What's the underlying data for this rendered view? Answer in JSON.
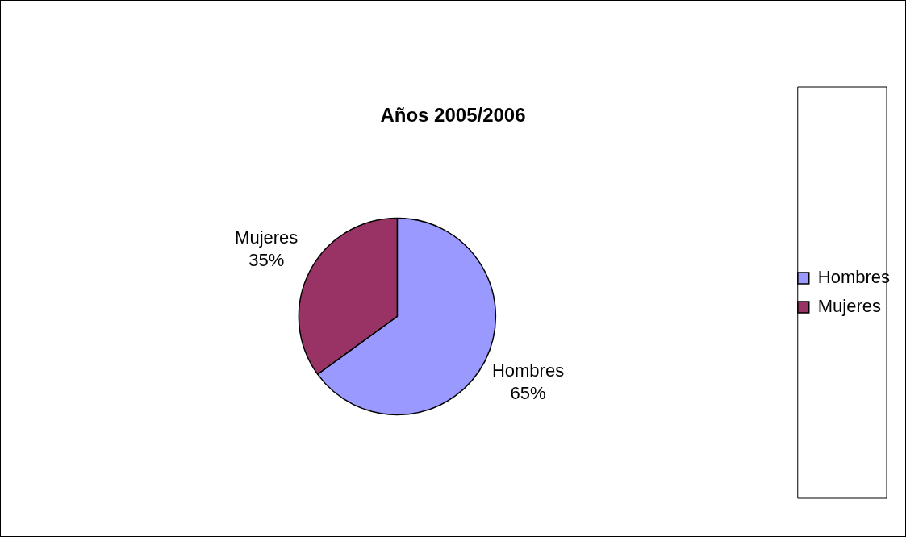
{
  "chart_data": {
    "type": "pie",
    "title": "Años 2005/2006",
    "categories": [
      "Hombres",
      "Mujeres"
    ],
    "values": [
      65,
      35
    ],
    "value_labels": [
      "65%",
      "35%"
    ],
    "colors": [
      "#9999ff",
      "#993366"
    ],
    "legend": "right"
  }
}
